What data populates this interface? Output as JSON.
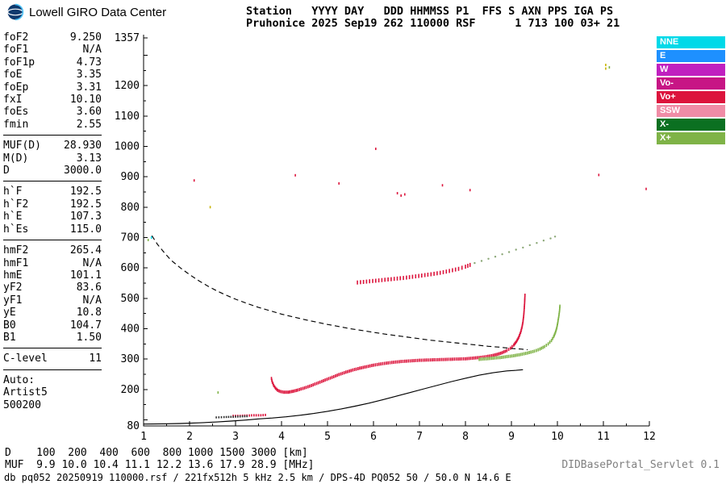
{
  "header": {
    "logo_text": "Lowell GIRO Data Center",
    "station_line1": "Station   YYYY DAY   DDD HHMMSS P1  FFS S AXN PPS IGA PS",
    "station_line2": "Pruhonice 2025 Sep19 262 110000 RSF      1 713 100 03+ 21"
  },
  "params": {
    "groups": [
      {
        "rule_after": true,
        "rows": [
          {
            "label": "foF2",
            "value": "9.250"
          },
          {
            "label": "foF1",
            "value": "N/A"
          },
          {
            "label": "foF1p",
            "value": "4.73"
          },
          {
            "label": "foE",
            "value": "3.35"
          },
          {
            "label": "foEp",
            "value": "3.31"
          },
          {
            "label": "fxI",
            "value": "10.10"
          },
          {
            "label": "foEs",
            "value": "3.60"
          },
          {
            "label": "fmin",
            "value": "2.55"
          }
        ]
      },
      {
        "rule_after": true,
        "rows": [
          {
            "label": "MUF(D)",
            "value": "28.930"
          },
          {
            "label": "M(D)",
            "value": "3.13"
          },
          {
            "label": "D",
            "value": "3000.0"
          }
        ]
      },
      {
        "rule_after": true,
        "rows": [
          {
            "label": "h`F",
            "value": "192.5"
          },
          {
            "label": "h`F2",
            "value": "192.5"
          },
          {
            "label": "h`E",
            "value": "107.3"
          },
          {
            "label": "h`Es",
            "value": "115.0"
          }
        ]
      },
      {
        "rule_after": true,
        "rows": [
          {
            "label": "hmF2",
            "value": "265.4"
          },
          {
            "label": "hmF1",
            "value": "N/A"
          },
          {
            "label": "hmE",
            "value": "101.1"
          },
          {
            "label": "yF2",
            "value": "83.6"
          },
          {
            "label": "yF1",
            "value": "N/A"
          },
          {
            "label": "yE",
            "value": "10.8"
          },
          {
            "label": "B0",
            "value": "104.7"
          },
          {
            "label": "B1",
            "value": "1.50"
          }
        ]
      },
      {
        "rule_after": true,
        "rows": [
          {
            "label": "C-level",
            "value": "11"
          }
        ]
      },
      {
        "rule_after": false,
        "rows": [
          {
            "label": "Auto:",
            "value": ""
          },
          {
            "label": "Artist5",
            "value": ""
          },
          {
            "label": "500200",
            "value": ""
          }
        ]
      }
    ]
  },
  "legend": {
    "position": "right",
    "items": [
      {
        "label": "NNE",
        "color": "#00D9E8"
      },
      {
        "label": "E",
        "color": "#1E90FF"
      },
      {
        "label": "W",
        "color": "#C020C0"
      },
      {
        "label": "Vo-",
        "color": "#C71585"
      },
      {
        "label": "Vo+",
        "color": "#DC143C"
      },
      {
        "label": "SSW",
        "color": "#F08CA6"
      },
      {
        "label": "X-",
        "color": "#0B7021"
      },
      {
        "label": "X+",
        "color": "#7FB347"
      }
    ]
  },
  "footer": {
    "d_row": {
      "label": "D",
      "values": [
        "100",
        "200",
        "400",
        "600",
        "800",
        "1000",
        "1500",
        "3000"
      ],
      "unit": "[km]"
    },
    "muf_row": {
      "label": "MUF",
      "values": [
        "9.9",
        "10.0",
        "10.4",
        "11.1",
        "12.2",
        "13.6",
        "17.9",
        "28.9"
      ],
      "unit": "[MHz]"
    },
    "status_line": "db pq052 20250919 110000.rsf / 221fx512h 5 kHz 2.5 km / DPS-4D PQ052 50 / 50.0 N 14.6 E",
    "servlet_label": "DIDBasePortal_Servlet 0.1"
  },
  "chart_data": {
    "type": "scatter",
    "title": "",
    "xlabel": "",
    "ylabel": "",
    "x_range": [
      1,
      12
    ],
    "y_range": [
      80,
      1357
    ],
    "x_ticks": [
      1,
      2,
      3,
      4,
      5,
      6,
      7,
      8,
      9,
      10,
      11,
      12
    ],
    "y_ticks": [
      1357,
      1200,
      1100,
      1000,
      900,
      800,
      700,
      600,
      500,
      400,
      300,
      200,
      80
    ],
    "grid": false,
    "series": [
      {
        "name": "transmission_curve_D3000",
        "style": "dashed-line",
        "color": "#000000",
        "points": [
          [
            1.18,
            706
          ],
          [
            1.3,
            678
          ],
          [
            1.45,
            650
          ],
          [
            1.6,
            625
          ],
          [
            1.8,
            600
          ],
          [
            2.0,
            578
          ],
          [
            2.2,
            558
          ],
          [
            2.4,
            540
          ],
          [
            2.6,
            524
          ],
          [
            2.8,
            510
          ],
          [
            3.0,
            497
          ],
          [
            3.25,
            483
          ],
          [
            3.5,
            470
          ],
          [
            3.75,
            459
          ],
          [
            4.0,
            448
          ],
          [
            4.25,
            439
          ],
          [
            4.5,
            430
          ],
          [
            4.75,
            422
          ],
          [
            5.0,
            414
          ],
          [
            5.25,
            407
          ],
          [
            5.5,
            400
          ],
          [
            5.75,
            394
          ],
          [
            6.0,
            388
          ],
          [
            6.25,
            382
          ],
          [
            6.5,
            377
          ],
          [
            6.75,
            372
          ],
          [
            7.0,
            367
          ],
          [
            7.25,
            362
          ],
          [
            7.5,
            358
          ],
          [
            7.75,
            354
          ],
          [
            8.0,
            350
          ],
          [
            8.25,
            346
          ],
          [
            8.5,
            342
          ],
          [
            8.75,
            339
          ],
          [
            9.0,
            335
          ],
          [
            9.2,
            333
          ],
          [
            9.35,
            331
          ]
        ]
      },
      {
        "name": "true_height_profile",
        "style": "line",
        "color": "#000000",
        "points": [
          [
            1.0,
            86
          ],
          [
            1.4,
            87
          ],
          [
            1.8,
            88
          ],
          [
            2.2,
            90
          ],
          [
            2.6,
            93
          ],
          [
            2.9,
            96
          ],
          [
            3.2,
            99
          ],
          [
            3.35,
            101
          ],
          [
            3.5,
            103
          ],
          [
            3.8,
            106
          ],
          [
            4.1,
            110
          ],
          [
            4.4,
            115
          ],
          [
            4.7,
            121
          ],
          [
            5.0,
            128
          ],
          [
            5.3,
            136
          ],
          [
            5.6,
            145
          ],
          [
            5.9,
            155
          ],
          [
            6.2,
            166
          ],
          [
            6.5,
            178
          ],
          [
            6.8,
            190
          ],
          [
            7.1,
            202
          ],
          [
            7.4,
            214
          ],
          [
            7.7,
            226
          ],
          [
            8.0,
            237
          ],
          [
            8.3,
            247
          ],
          [
            8.6,
            255
          ],
          [
            8.9,
            261
          ],
          [
            9.1,
            263
          ],
          [
            9.25,
            265
          ]
        ]
      },
      {
        "name": "f_trace_o_mode_vo_plus",
        "style": "vdash",
        "color": "#DC143C",
        "step": 2.2,
        "dash_height": 4,
        "points": [
          [
            3.78,
            236
          ],
          [
            3.8,
            224
          ],
          [
            3.83,
            213
          ],
          [
            3.87,
            204
          ],
          [
            3.92,
            197
          ],
          [
            3.98,
            193
          ],
          [
            4.05,
            191
          ],
          [
            4.15,
            191
          ],
          [
            4.25,
            194
          ],
          [
            4.35,
            198
          ],
          [
            4.5,
            205
          ],
          [
            4.65,
            213
          ],
          [
            4.8,
            222
          ],
          [
            4.95,
            231
          ],
          [
            5.1,
            240
          ],
          [
            5.25,
            249
          ],
          [
            5.4,
            257
          ],
          [
            5.55,
            264
          ],
          [
            5.7,
            270
          ],
          [
            5.85,
            275
          ],
          [
            6.0,
            280
          ],
          [
            6.2,
            285
          ],
          [
            6.4,
            289
          ],
          [
            6.6,
            292
          ],
          [
            6.8,
            294
          ],
          [
            7.0,
            296
          ],
          [
            7.2,
            297
          ],
          [
            7.4,
            298
          ],
          [
            7.6,
            299
          ],
          [
            7.8,
            300
          ],
          [
            8.0,
            301
          ],
          [
            8.15,
            303
          ],
          [
            8.3,
            305
          ],
          [
            8.45,
            308
          ],
          [
            8.6,
            312
          ],
          [
            8.7,
            316
          ],
          [
            8.8,
            321
          ],
          [
            8.9,
            328
          ],
          [
            8.98,
            336
          ],
          [
            9.05,
            346
          ],
          [
            9.11,
            358
          ],
          [
            9.16,
            372
          ],
          [
            9.2,
            388
          ],
          [
            9.23,
            405
          ],
          [
            9.25,
            422
          ],
          [
            9.265,
            440
          ],
          [
            9.275,
            458
          ],
          [
            9.283,
            476
          ],
          [
            9.29,
            494
          ],
          [
            9.295,
            510
          ]
        ]
      },
      {
        "name": "f_trace_x_mode_x_plus",
        "style": "vdash",
        "color": "#7FB347",
        "step": 2.4,
        "dash_height": 4,
        "points": [
          [
            8.3,
            299
          ],
          [
            8.45,
            301
          ],
          [
            8.6,
            303
          ],
          [
            8.75,
            305
          ],
          [
            8.9,
            308
          ],
          [
            9.05,
            311
          ],
          [
            9.2,
            315
          ],
          [
            9.35,
            320
          ],
          [
            9.5,
            326
          ],
          [
            9.62,
            333
          ],
          [
            9.72,
            341
          ],
          [
            9.8,
            350
          ],
          [
            9.87,
            361
          ],
          [
            9.92,
            374
          ],
          [
            9.96,
            389
          ],
          [
            9.99,
            405
          ],
          [
            10.01,
            422
          ],
          [
            10.03,
            440
          ],
          [
            10.045,
            458
          ],
          [
            10.055,
            474
          ]
        ]
      },
      {
        "name": "es_trace_vo_plus",
        "style": "vdash",
        "color": "#DC143C",
        "step": 3,
        "dash_height": 3,
        "points": [
          [
            2.95,
            113
          ],
          [
            3.1,
            113
          ],
          [
            3.25,
            114
          ],
          [
            3.4,
            115
          ],
          [
            3.55,
            115
          ],
          [
            3.65,
            116
          ]
        ]
      },
      {
        "name": "e_trace_dark",
        "style": "vdash",
        "color": "#303030",
        "step": 3,
        "dash_height": 2.5,
        "points": [
          [
            2.58,
            108
          ],
          [
            2.75,
            109
          ],
          [
            2.95,
            110
          ],
          [
            3.1,
            111
          ],
          [
            3.25,
            112
          ]
        ]
      },
      {
        "name": "second_hop_f_trace_vo_plus",
        "style": "vdash",
        "color": "#DC143C",
        "step": 4,
        "dash_height": 5,
        "points": [
          [
            5.65,
            552
          ],
          [
            5.85,
            555
          ],
          [
            6.05,
            558
          ],
          [
            6.25,
            561
          ],
          [
            6.45,
            564
          ],
          [
            6.65,
            567
          ],
          [
            6.85,
            571
          ],
          [
            7.05,
            575
          ],
          [
            7.25,
            579
          ],
          [
            7.45,
            584
          ],
          [
            7.65,
            590
          ],
          [
            7.85,
            597
          ],
          [
            8.0,
            604
          ],
          [
            8.1,
            610
          ]
        ]
      },
      {
        "name": "second_hop_continuation",
        "style": "dots",
        "color": "#8CA878",
        "points": [
          [
            8.2,
            616
          ],
          [
            8.35,
            623
          ],
          [
            8.5,
            630
          ],
          [
            8.65,
            637
          ],
          [
            8.8,
            645
          ],
          [
            8.95,
            652
          ],
          [
            9.1,
            660
          ],
          [
            9.25,
            667
          ],
          [
            9.4,
            675
          ],
          [
            9.55,
            682
          ],
          [
            9.7,
            690
          ],
          [
            9.85,
            697
          ],
          [
            9.95,
            703
          ]
        ]
      },
      {
        "name": "noise_specks",
        "style": "noise",
        "points": [
          [
            2.1,
            888,
            "#DC143C"
          ],
          [
            2.45,
            800,
            "#C8B400"
          ],
          [
            1.1,
            692,
            "#7FB347"
          ],
          [
            1.17,
            700,
            "#00D9E8"
          ],
          [
            2.62,
            190,
            "#7FB347"
          ],
          [
            4.3,
            905,
            "#DC143C"
          ],
          [
            5.25,
            878,
            "#DC143C"
          ],
          [
            6.05,
            992,
            "#DC143C"
          ],
          [
            6.52,
            846,
            "#DC143C"
          ],
          [
            6.6,
            838,
            "#DC143C"
          ],
          [
            6.68,
            842,
            "#DC143C"
          ],
          [
            7.5,
            872,
            "#DC143C"
          ],
          [
            8.1,
            856,
            "#DC143C"
          ],
          [
            10.9,
            906,
            "#DC143C"
          ],
          [
            11.93,
            860,
            "#DC143C"
          ],
          [
            11.05,
            1268,
            "#C8B400"
          ],
          [
            11.05,
            1256,
            "#C8B400"
          ],
          [
            11.13,
            1260,
            "#7FB347"
          ]
        ]
      }
    ]
  }
}
